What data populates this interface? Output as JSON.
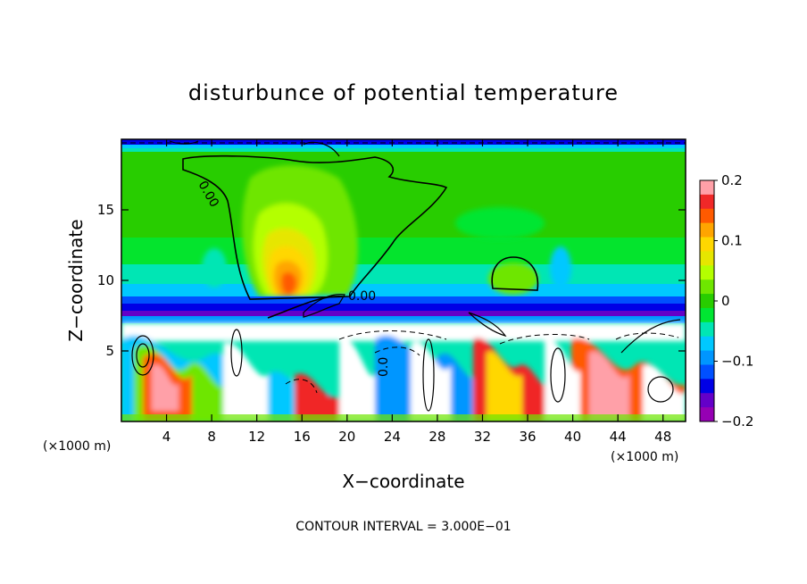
{
  "chart_data": {
    "type": "heatmap",
    "title": "disturbunce of potential temperature",
    "xlabel": "X−coordinate",
    "ylabel": "Z−coordinate",
    "x_unit": "(×1000 m)",
    "y_unit": "(×1000 m)",
    "xlim": [
      0,
      50
    ],
    "ylim": [
      0,
      20
    ],
    "x_ticks": [
      4,
      8,
      12,
      16,
      20,
      24,
      28,
      32,
      36,
      40,
      44,
      48
    ],
    "y_ticks": [
      5,
      10,
      15
    ],
    "colorbar": {
      "range": [
        -0.2,
        0.2
      ],
      "tick_values": [
        0.2,
        0.1,
        0,
        -0.1,
        -0.2
      ],
      "tick_labels": [
        "0.2",
        "0.1",
        "0",
        "−0.1",
        "−0.2"
      ],
      "colors": [
        "#ffa0a8",
        "#f02828",
        "#ff5a00",
        "#ffa500",
        "#ffd700",
        "#e6e600",
        "#b4ff00",
        "#6ee600",
        "#28cd00",
        "#00e632",
        "#00e6b4",
        "#00c8ff",
        "#0096ff",
        "#0050ff",
        "#0000e6",
        "#6400c8",
        "#9600b4"
      ]
    },
    "contour_labels": [
      "0.00",
      "0.00",
      "0.0"
    ],
    "annotation": "CONTOUR INTERVAL = 3.000E−01"
  }
}
